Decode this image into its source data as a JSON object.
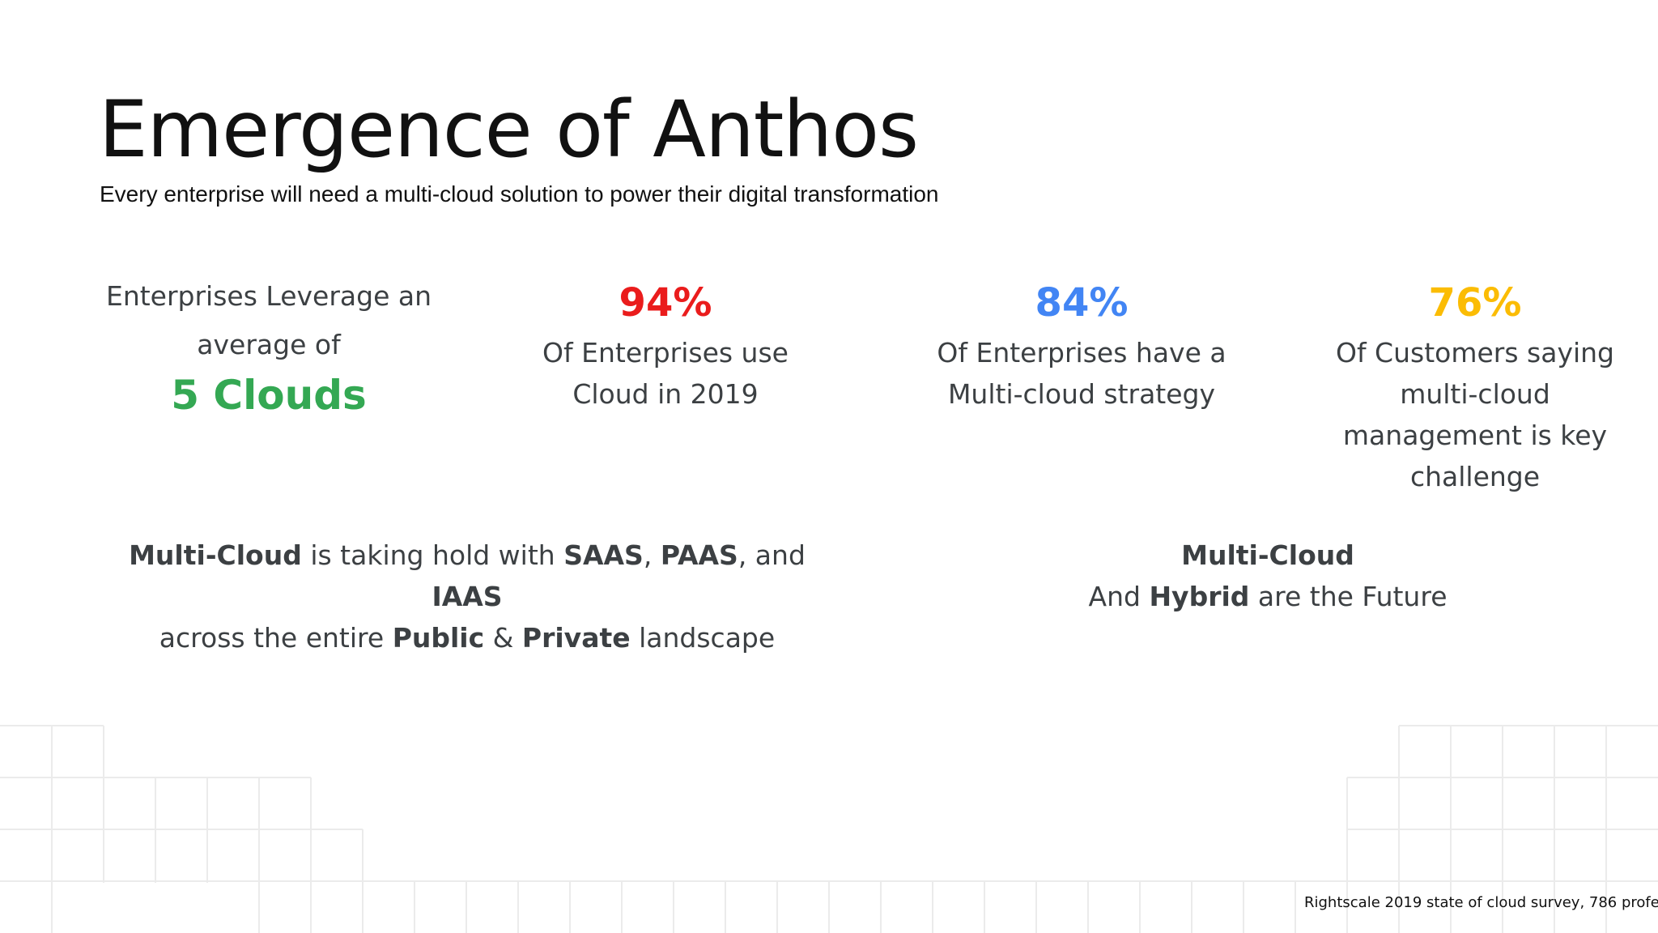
{
  "title": "Emergence of Anthos",
  "subtitle": "Every enterprise will need a multi-cloud solution to power their digital transformation",
  "colors": {
    "red": "#ea1c1c",
    "blue": "#4285f4",
    "yellow": "#fbbc04",
    "green": "#34a853"
  },
  "stats": {
    "clouds": {
      "line1": "Enterprises Leverage an",
      "line2": "average of",
      "value": "5 Clouds"
    },
    "cloud_use": {
      "value": "94%",
      "line1": "Of Enterprises use",
      "line2": "Cloud in 2019"
    },
    "multicloud_strategy": {
      "value": "84%",
      "line1": "Of Enterprises have a",
      "line2": "Multi-cloud strategy"
    },
    "management": {
      "value": "76%",
      "line1": "Of Customers saying",
      "line2": "multi-cloud",
      "line3": "management is key",
      "line4": "challenge"
    }
  },
  "bottom_left": {
    "b1": "Multi-Cloud",
    "t1": " is taking hold with ",
    "b2": "SAAS",
    "t2": ", ",
    "b3": "PAAS",
    "t3": ", and ",
    "b4": "IAAS",
    "t4": "across the entire ",
    "b5": "Public",
    "t5": " & ",
    "b6": "Private",
    "t6": " landscape"
  },
  "bottom_right": {
    "b1": "Multi-Cloud",
    "t1": "And ",
    "b2": "Hybrid",
    "t2": " are the Future"
  },
  "source": "Rightscale 2019 state of cloud survey, 786 profe"
}
